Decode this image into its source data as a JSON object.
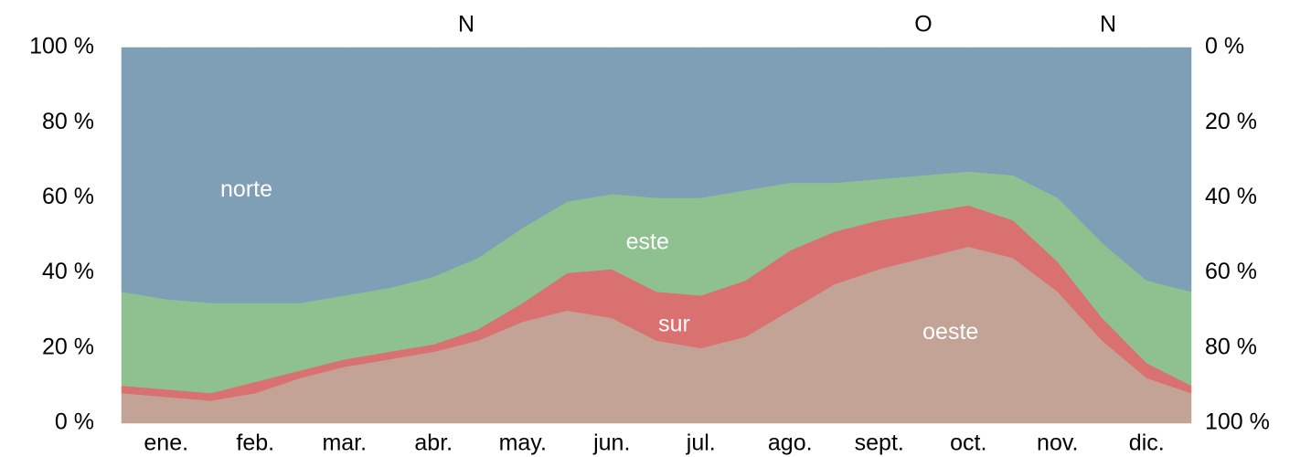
{
  "chart_data": {
    "type": "stacked_area",
    "top_labels": [
      "N",
      "O",
      "N"
    ],
    "categories": [
      "ene.",
      "feb.",
      "mar.",
      "abr.",
      "may.",
      "jun.",
      "jul.",
      "ago.",
      "sept.",
      "oct.",
      "nov.",
      "dic."
    ],
    "x": [
      0,
      0.5,
      1,
      1.5,
      2,
      2.5,
      3,
      3.5,
      4,
      4.5,
      5,
      5.5,
      6,
      6.5,
      7,
      7.5,
      8,
      8.5,
      9,
      9.5,
      10,
      10.5,
      11,
      11.5,
      12
    ],
    "xlim": [
      0,
      12
    ],
    "series": [
      {
        "name": "oeste",
        "color": "#c4a397",
        "values": [
          8,
          7,
          6,
          8,
          12,
          15,
          17,
          19,
          22,
          27,
          30,
          28,
          22,
          20,
          23,
          30,
          37,
          41,
          44,
          47,
          44,
          35,
          22,
          12,
          8
        ]
      },
      {
        "name": "sur",
        "color": "#d8716f",
        "values": [
          2,
          2,
          2,
          3,
          2,
          2,
          2,
          2,
          3,
          5,
          10,
          13,
          13,
          14,
          15,
          16,
          14,
          13,
          12,
          11,
          10,
          8,
          6,
          4,
          2
        ]
      },
      {
        "name": "este",
        "color": "#8fc190",
        "values": [
          25,
          24,
          24,
          21,
          18,
          17,
          17,
          18,
          19,
          20,
          19,
          20,
          25,
          26,
          24,
          18,
          13,
          11,
          10,
          9,
          12,
          17,
          20,
          22,
          25
        ]
      },
      {
        "name": "norte",
        "color": "#7f9fb6",
        "values": [
          65,
          67,
          68,
          68,
          68,
          66,
          64,
          61,
          56,
          48,
          41,
          39,
          40,
          40,
          38,
          36,
          36,
          35,
          34,
          33,
          34,
          40,
          52,
          62,
          65
        ]
      }
    ],
    "ylim": [
      0,
      100
    ],
    "yticks": [
      {
        "value": 0,
        "label": "0 %"
      },
      {
        "value": 20,
        "label": "20 %"
      },
      {
        "value": 40,
        "label": "40 %"
      },
      {
        "value": 60,
        "label": "60 %"
      },
      {
        "value": 80,
        "label": "80 %"
      },
      {
        "value": 100,
        "label": "100 %"
      }
    ],
    "y2lim": [
      100,
      0
    ],
    "y2ticks": [
      {
        "value": 0,
        "label": "0 %"
      },
      {
        "value": 20,
        "label": "20 %"
      },
      {
        "value": 40,
        "label": "40 %"
      },
      {
        "value": 60,
        "label": "60 %"
      },
      {
        "value": 80,
        "label": "80 %"
      },
      {
        "value": 100,
        "label": "100 %"
      }
    ]
  }
}
